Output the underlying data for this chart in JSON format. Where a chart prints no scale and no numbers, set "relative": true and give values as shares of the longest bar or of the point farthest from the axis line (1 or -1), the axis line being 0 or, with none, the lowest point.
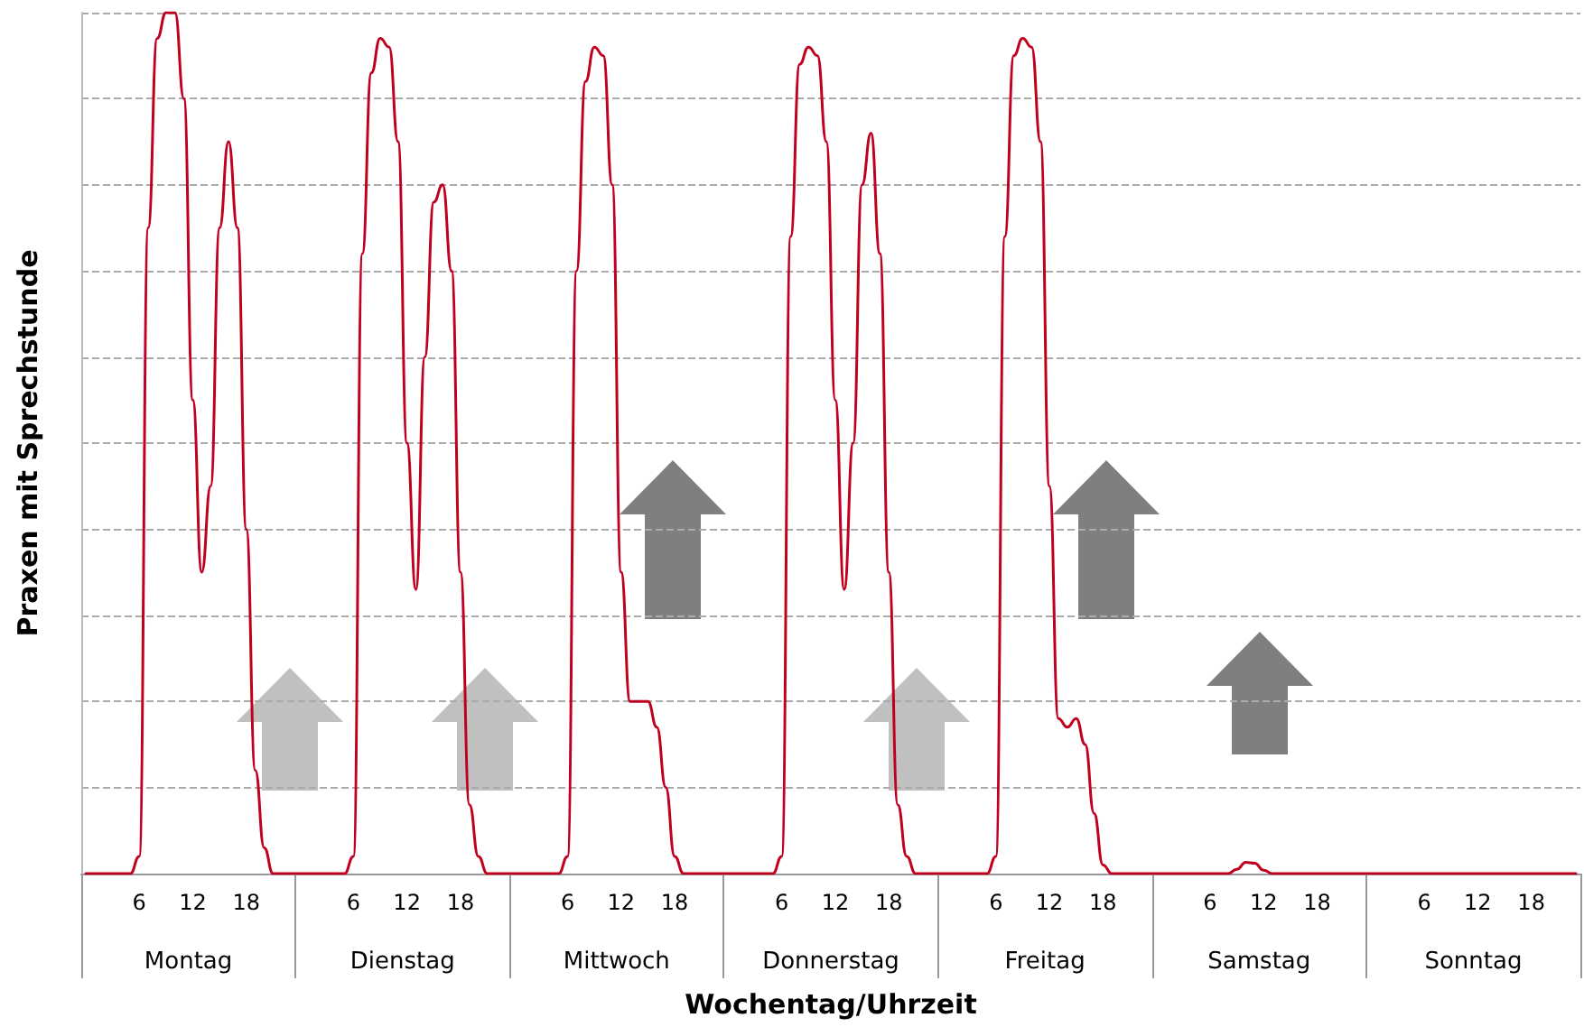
{
  "chart_data": {
    "type": "line",
    "relative": true,
    "xlabel": "Wochentag/Uhrzeit",
    "ylabel": "Praxen mit Sprechstunde",
    "grid": "y",
    "marker": "none",
    "line_style": "solid",
    "annotations": [
      "Montag",
      "Dienstag",
      "Mittwoch",
      "Donnerstag",
      "Freitag",
      "Samstag",
      "Sonntag"
    ],
    "categories": [
      null,
      null,
      null,
      null,
      null,
      null,
      "6",
      null,
      null,
      null,
      null,
      null,
      "12",
      null,
      null,
      null,
      null,
      null,
      "18",
      null,
      null,
      null,
      null,
      null,
      null,
      null,
      null,
      null,
      null,
      null,
      "6",
      null,
      null,
      null,
      null,
      null,
      "12",
      null,
      null,
      null,
      null,
      null,
      "18",
      null,
      null,
      null,
      null,
      null,
      null,
      null,
      null,
      null,
      null,
      null,
      "6",
      null,
      null,
      null,
      null,
      null,
      "12",
      null,
      null,
      null,
      null,
      null,
      "18",
      null,
      null,
      null,
      null,
      null,
      null,
      null,
      null,
      null,
      null,
      null,
      "6",
      null,
      null,
      null,
      null,
      null,
      "12",
      null,
      null,
      null,
      null,
      null,
      "18",
      null,
      null,
      null,
      null,
      null,
      null,
      null,
      null,
      null,
      null,
      null,
      "6",
      null,
      null,
      null,
      null,
      null,
      "12",
      null,
      null,
      null,
      null,
      null,
      "18",
      null,
      null,
      null,
      null,
      null,
      null,
      null,
      null,
      null,
      null,
      null,
      "6",
      null,
      null,
      null,
      null,
      null,
      "12",
      null,
      null,
      null,
      null,
      null,
      "18",
      null,
      null,
      null,
      null,
      null,
      null,
      null,
      null,
      null,
      null,
      null,
      "6",
      null,
      null,
      null,
      null,
      null,
      "12",
      null,
      null,
      null,
      null,
      null,
      "18",
      null,
      null,
      null,
      null,
      null
    ],
    "series": [
      {
        "color": "#c0001e",
        "values": [
          0,
          0,
          0,
          0,
          0,
          0,
          0.02,
          0.75,
          0.97,
          1.0,
          1.0,
          0.9,
          0.55,
          0.35,
          0.45,
          0.75,
          0.85,
          0.75,
          0.4,
          0.12,
          0.03,
          0,
          0,
          0,
          0,
          0,
          0,
          0,
          0,
          0,
          0.02,
          0.72,
          0.93,
          0.97,
          0.96,
          0.85,
          0.5,
          0.33,
          0.6,
          0.78,
          0.8,
          0.7,
          0.35,
          0.08,
          0.02,
          0,
          0,
          0,
          0,
          0,
          0,
          0,
          0,
          0,
          0.02,
          0.7,
          0.92,
          0.96,
          0.95,
          0.8,
          0.35,
          0.2,
          0.2,
          0.2,
          0.17,
          0.1,
          0.02,
          0,
          0,
          0,
          0,
          0,
          0,
          0,
          0,
          0,
          0,
          0,
          0.02,
          0.74,
          0.94,
          0.96,
          0.95,
          0.85,
          0.55,
          0.33,
          0.5,
          0.8,
          0.86,
          0.72,
          0.35,
          0.08,
          0.02,
          0,
          0,
          0,
          0,
          0,
          0,
          0,
          0,
          0,
          0.02,
          0.74,
          0.95,
          0.97,
          0.96,
          0.85,
          0.45,
          0.18,
          0.17,
          0.18,
          0.15,
          0.07,
          0.01,
          0,
          0,
          0,
          0,
          0,
          0,
          0,
          0,
          0,
          0,
          0,
          0,
          0,
          0,
          0.005,
          0.013,
          0.012,
          0.004,
          0,
          0,
          0,
          0,
          0,
          0,
          0,
          0,
          0,
          0,
          0,
          0,
          0,
          0,
          0,
          0,
          0,
          0,
          0,
          0,
          0,
          0,
          0,
          0,
          0,
          0,
          0,
          0,
          0,
          0,
          0,
          0,
          0,
          0,
          0
        ]
      }
    ]
  }
}
